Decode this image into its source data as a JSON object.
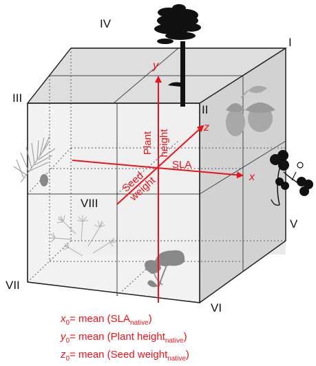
{
  "colors": {
    "accent": "#e8141b",
    "cube_face_light": "#f2f2f2",
    "cube_face_mid": "#dddddd",
    "cube_face_dark": "#cfcfcf",
    "edge": "#333333",
    "silhouette": "#1a1a1a",
    "silhouette_faint": "#a8a8a8"
  },
  "octants": {
    "I": "I",
    "II": "II",
    "III": "III",
    "IV": "IV",
    "V": "V",
    "VI": "VI",
    "VII": "VII",
    "VIII": "VIII"
  },
  "axes": {
    "x": {
      "letter": "x",
      "label": "SLA"
    },
    "y": {
      "letter": "y",
      "label_line1": "Plant",
      "label_line2": "height"
    },
    "z": {
      "letter": "z",
      "label_line1": "Seed",
      "label_line2": "weight"
    }
  },
  "legend": {
    "x": {
      "symbol": "x",
      "subscript": "0",
      "text": "= mean (SLA",
      "subtext": "native",
      "close": ")"
    },
    "y": {
      "symbol": "y",
      "subscript": "0",
      "text": "= mean (Plant height",
      "subtext": "native",
      "close": ")"
    },
    "z": {
      "symbol": "z",
      "subscript": "0",
      "text": "= mean (Seed weight",
      "subtext": "native",
      "close": ")"
    }
  },
  "icons": [
    "pine-tree-icon",
    "acorn-icon",
    "clover-icon",
    "pine-branch-icon",
    "dandelion-seeds-icon",
    "mushroom-leaf-icon"
  ]
}
